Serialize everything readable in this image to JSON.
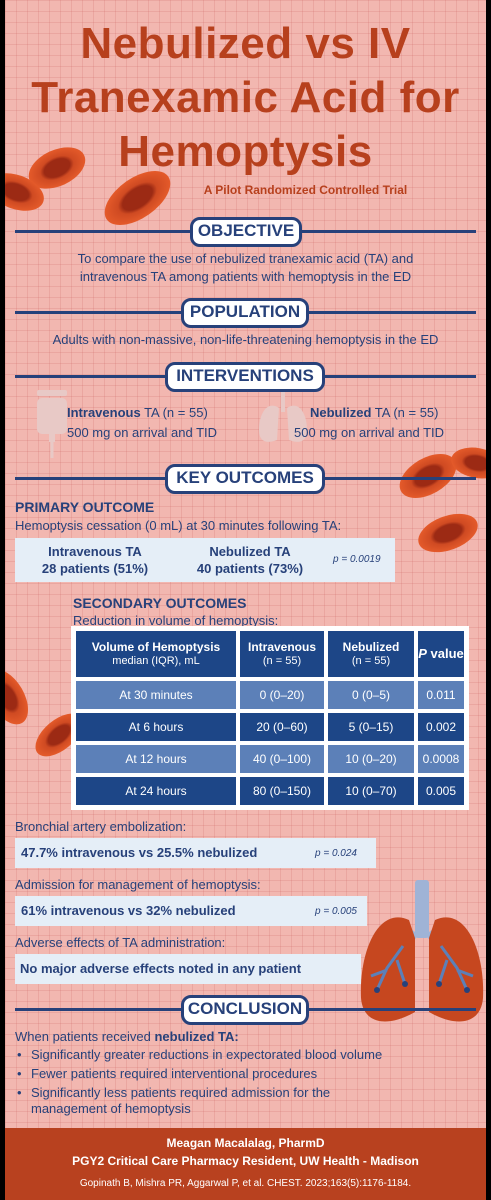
{
  "header": {
    "title_line1": "Nebulized vs IV",
    "title_line2": "Tranexamic Acid for",
    "title_line3": "Hemoptysis",
    "subtitle": "A Pilot Randomized Controlled Trial"
  },
  "objective": {
    "heading": "OBJECTIVE",
    "line1": "To compare the use of nebulized tranexamic acid (TA) and",
    "line2": "intravenous TA among patients with hemoptysis in the ED"
  },
  "population": {
    "heading": "POPULATION",
    "text": "Adults with non-massive, non-life-threatening hemoptysis in the ED"
  },
  "interventions": {
    "heading": "INTERVENTIONS",
    "iv_name": "Intravenous",
    "iv_rest": " TA (n = 55)",
    "iv_dose": "500 mg on arrival and TID",
    "neb_name": "Nebulized",
    "neb_rest": " TA (n = 55)",
    "neb_dose": "500 mg on arrival and TID"
  },
  "key_outcomes": {
    "heading": "KEY OUTCOMES",
    "primary_heading": "PRIMARY OUTCOME",
    "primary_desc": "Hemoptysis cessation (0 mL) at 30 minutes following TA:",
    "iv_label": "Intravenous TA",
    "iv_value": "28 patients (51%)",
    "neb_label": "Nebulized TA",
    "neb_value": "40 patients (73%)",
    "primary_p": "p = 0.0019",
    "secondary_heading": "SECONDARY OUTCOMES",
    "secondary_desc": "Reduction in volume of hemoptysis:"
  },
  "table": {
    "h1_main": "Volume of Hemoptysis",
    "h1_sub": "median (IQR), mL",
    "h2_main": "Intravenous",
    "h2_sub": "(n = 55)",
    "h3_main": "Nebulized",
    "h3_sub": "(n = 55)",
    "h4_p": "P",
    "h4_rest": " value",
    "rows": [
      {
        "time": "At 30 minutes",
        "iv": "0 (0–20)",
        "neb": "0 (0–5)",
        "p": "0.011"
      },
      {
        "time": "At 6 hours",
        "iv": "20 (0–60)",
        "neb": "5 (0–15)",
        "p": "0.002"
      },
      {
        "time": "At 12 hours",
        "iv": "40 (0–100)",
        "neb": "10 (0–20)",
        "p": "0.0008"
      },
      {
        "time": "At 24 hours",
        "iv": "80 (0–150)",
        "neb": "10 (0–70)",
        "p": "0.005"
      }
    ]
  },
  "other_outcomes": {
    "bae_label": "Bronchial artery embolization:",
    "bae_value": "47.7% intravenous vs 25.5% nebulized",
    "bae_p": "p = 0.024",
    "adm_label": "Admission for management of hemoptysis:",
    "adm_value": "61% intravenous vs 32% nebulized",
    "adm_p": "p = 0.005",
    "ae_label": "Adverse effects of TA administration:",
    "ae_value": "No major adverse effects noted in any patient"
  },
  "conclusion": {
    "heading": "CONCLUSION",
    "intro_plain": "When patients received ",
    "intro_bold": "nebulized TA:",
    "bullets": [
      "Significantly greater reductions in expectorated blood volume",
      "Fewer patients required interventional procedures",
      "Significantly less patients required admission for the management of hemoptysis"
    ]
  },
  "footer": {
    "author": "Meagan Macalalag, PharmD",
    "role": "PGY2 Critical Care Pharmacy Resident, UW Health - Madison",
    "citation": "Gopinath B, Mishra PR, Aggarwal P, et al. CHEST. 2023;163(5):1176-1184."
  },
  "colors": {
    "background": "#f2b7b0",
    "title": "#b7401d",
    "navy": "#27417a",
    "table_dark": "#1d4687",
    "table_light": "#5c80b8",
    "card": "#e5eef7",
    "footer": "#b8411f"
  },
  "icons": [
    "blood-cell-icon",
    "iv-bag-icon",
    "lungs-icon"
  ]
}
